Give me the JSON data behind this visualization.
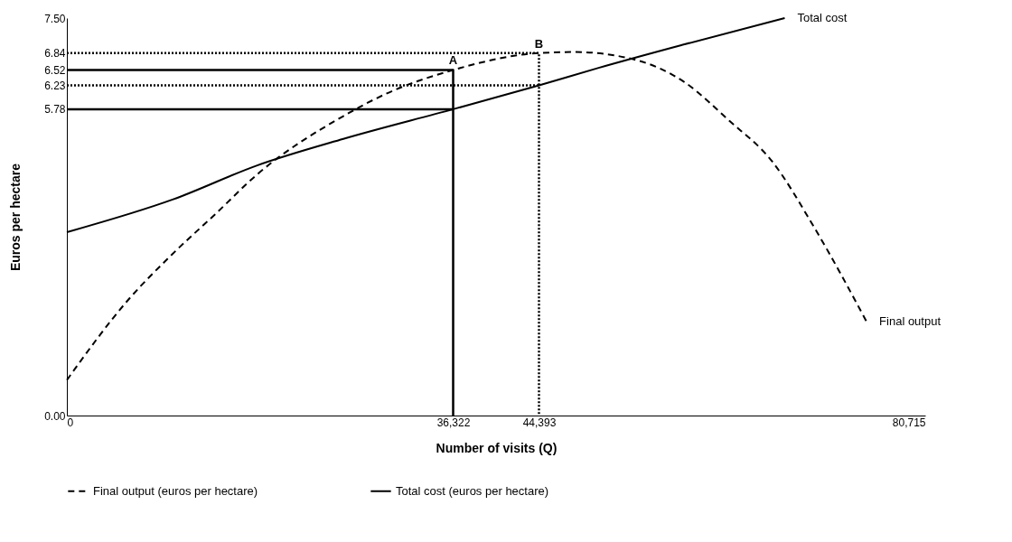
{
  "chart_data": {
    "type": "line",
    "xlabel": "Number of visits (Q)",
    "ylabel": "Euros per hectare",
    "xlim": [
      0,
      80715
    ],
    "xticks": [
      0,
      {
        "value": 36322,
        "label": "36,322"
      },
      {
        "value": 44393,
        "label": "44,393"
      },
      {
        "value": 80715,
        "label": "80,715"
      }
    ],
    "ylim": [
      0,
      7.5
    ],
    "yticks": [
      {
        "value": 0,
        "label": "0.00"
      },
      5.78,
      6.23,
      6.52,
      6.84,
      {
        "value": 7.5,
        "label": "7.50"
      }
    ],
    "grid": false,
    "legend": "bottom",
    "series": [
      {
        "name": "Final output (euros per hectare)",
        "color": "#000000",
        "line_style": "dashed",
        "x": [
          0,
          5800,
          9840,
          13900,
          17900,
          26000,
          30000,
          36322,
          44393,
          47700,
          53500,
          58000,
          62300,
          66300,
          70300,
          75200
        ],
        "values": [
          0.67,
          2.19,
          3.03,
          3.79,
          4.55,
          5.65,
          6.07,
          6.52,
          6.84,
          6.86,
          6.71,
          6.3,
          5.56,
          4.8,
          3.54,
          1.77
        ]
      },
      {
        "name": "Total cost (euros per hectare)",
        "color": "#000000",
        "line_style": "solid",
        "x": [
          0,
          10000,
          17900,
          26000,
          36322,
          44393,
          50000,
          58000,
          67500
        ],
        "values": [
          3.46,
          4.08,
          4.72,
          5.22,
          5.78,
          6.23,
          6.56,
          7.0,
          7.5
        ]
      },
      {
        "color": "#000000",
        "line_style": "solid",
        "x": [
          0,
          36322,
          36322
        ],
        "values": [
          6.52,
          6.52,
          0
        ]
      },
      {
        "color": "#000000",
        "line_style": "solid",
        "x": [
          0,
          36322
        ],
        "values": [
          5.78,
          5.78
        ]
      },
      {
        "color": "#000000",
        "line_style": "dotted",
        "x": [
          0,
          44393,
          44393
        ],
        "values": [
          6.84,
          6.84,
          0
        ]
      },
      {
        "color": "#000000",
        "line_style": "dotted",
        "x": [
          0,
          44393
        ],
        "values": [
          6.23,
          6.23
        ]
      }
    ],
    "annotations": [
      {
        "text": "A",
        "x": 36322,
        "y": 6.52
      },
      {
        "text": "B",
        "x": 44393,
        "y": 6.84
      },
      {
        "text": "Total cost",
        "x": 67500,
        "y": 7.5
      },
      {
        "text": "Final output",
        "x": 75200,
        "y": 1.77
      }
    ]
  }
}
